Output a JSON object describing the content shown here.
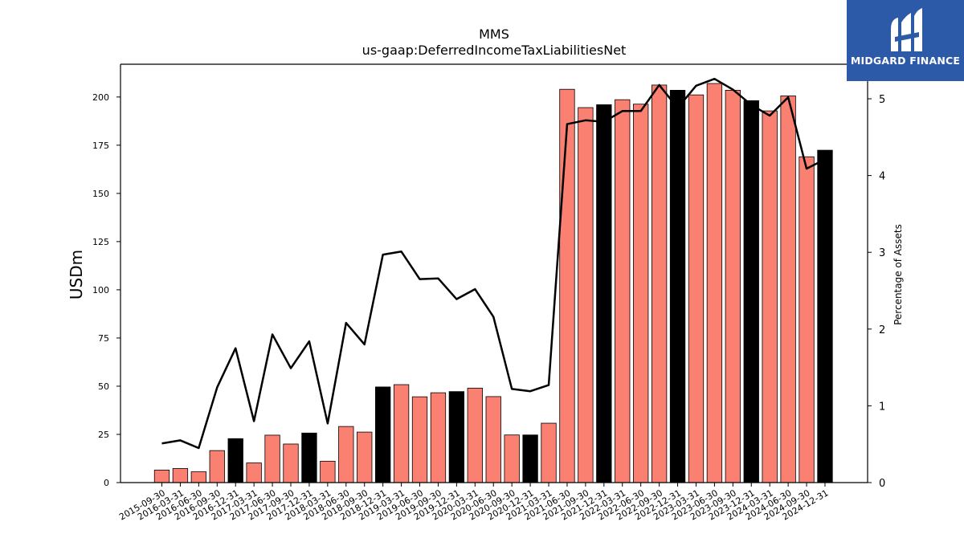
{
  "chart_data": {
    "type": "bar",
    "title": "MMS",
    "subtitle": "us-gaap:DeferredIncomeTaxLiabilitiesNet",
    "ylabel": "USDm",
    "y2label": "Percentage of Assets",
    "ylim": [
      0,
      217
    ],
    "y2lim": [
      0,
      5.45
    ],
    "yticks": [
      0,
      25,
      50,
      75,
      100,
      125,
      150,
      175,
      200
    ],
    "y2ticks": [
      0,
      1,
      2,
      3,
      4,
      5
    ],
    "categories": [
      "2015-09-30",
      "2016-03-31",
      "2016-06-30",
      "2016-09-30",
      "2016-12-31",
      "2017-03-31",
      "2017-06-30",
      "2017-09-30",
      "2017-12-31",
      "2018-03-31",
      "2018-06-30",
      "2018-09-30",
      "2018-12-31",
      "2019-03-31",
      "2019-06-30",
      "2019-09-30",
      "2019-12-31",
      "2020-03-31",
      "2020-06-30",
      "2020-09-30",
      "2020-12-31",
      "2021-03-31",
      "2021-06-30",
      "2021-09-30",
      "2021-12-31",
      "2022-03-31",
      "2022-06-30",
      "2022-09-30",
      "2022-12-31",
      "2023-03-31",
      "2023-06-30",
      "2023-09-30",
      "2023-12-31",
      "2024-03-31",
      "2024-06-30",
      "2024-09-30",
      "2024-12-31"
    ],
    "series": [
      {
        "type": "bar",
        "axis": "left",
        "values": [
          6.5,
          7.3,
          5.6,
          16.6,
          22.8,
          10.2,
          24.6,
          20.0,
          25.7,
          11.1,
          29.1,
          26.2,
          49.6,
          50.8,
          44.5,
          46.6,
          47.2,
          49.0,
          44.6,
          24.7,
          24.7,
          30.8,
          204.0,
          194.5,
          196.0,
          198.6,
          196.3,
          206.2,
          203.5,
          201.1,
          207.0,
          203.5,
          198.1,
          192.8,
          200.6,
          169.0,
          172.4
        ],
        "colors": [
          "#fa8072",
          "#fa8072",
          "#fa8072",
          "#fa8072",
          "#000000",
          "#fa8072",
          "#fa8072",
          "#fa8072",
          "#000000",
          "#fa8072",
          "#fa8072",
          "#fa8072",
          "#000000",
          "#fa8072",
          "#fa8072",
          "#fa8072",
          "#000000",
          "#fa8072",
          "#fa8072",
          "#fa8072",
          "#000000",
          "#fa8072",
          "#fa8072",
          "#fa8072",
          "#000000",
          "#fa8072",
          "#fa8072",
          "#fa8072",
          "#000000",
          "#fa8072",
          "#fa8072",
          "#fa8072",
          "#000000",
          "#fa8072",
          "#fa8072",
          "#fa8072",
          "#000000"
        ]
      },
      {
        "type": "line",
        "axis": "right",
        "color": "#000000",
        "values": [
          0.51,
          0.55,
          0.45,
          1.24,
          1.75,
          0.8,
          1.93,
          1.49,
          1.84,
          0.77,
          2.08,
          1.8,
          2.97,
          3.01,
          2.65,
          2.66,
          2.39,
          2.52,
          2.16,
          1.22,
          1.19,
          1.27,
          4.67,
          4.72,
          4.7,
          4.84,
          4.84,
          5.18,
          4.88,
          5.17,
          5.26,
          5.12,
          4.92,
          4.78,
          5.02,
          4.09,
          4.21
        ]
      }
    ],
    "grid": false
  },
  "logo": {
    "text": "MIDGARD FINANCE",
    "bg": "#2d5aa8"
  }
}
